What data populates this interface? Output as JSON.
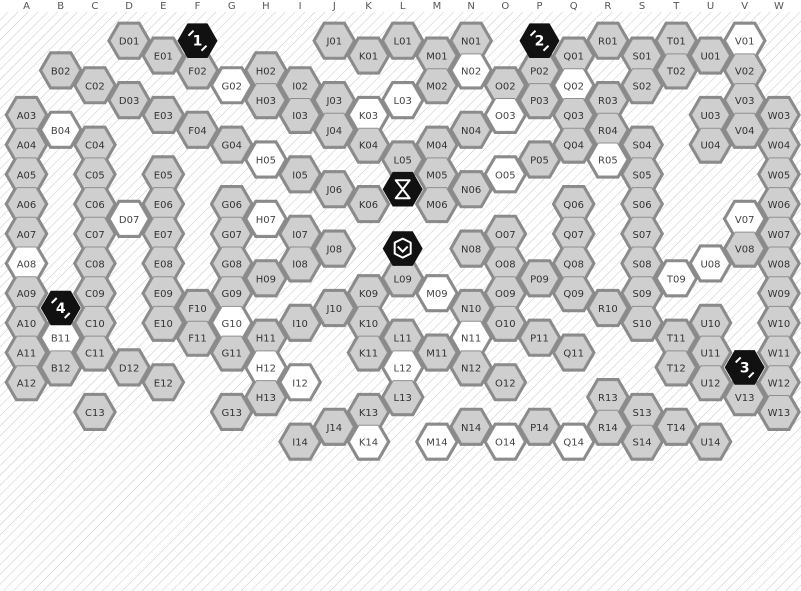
{
  "board": {
    "columns": [
      "A",
      "B",
      "C",
      "D",
      "E",
      "F",
      "G",
      "H",
      "I",
      "J",
      "K",
      "L",
      "M",
      "N",
      "O",
      "P",
      "Q",
      "R",
      "S",
      "T",
      "U",
      "V",
      "W"
    ],
    "white_cells": [
      "V01",
      "G02",
      "N02",
      "O03",
      "K03",
      "L03",
      "Q02",
      "A08",
      "D07",
      "B04",
      "H05",
      "H07",
      "O05",
      "R05",
      "M09",
      "V07",
      "U08",
      "T09",
      "G10",
      "N11",
      "B11",
      "H12",
      "L12",
      "M14",
      "O14",
      "Q14",
      "K14",
      "I12"
    ],
    "colors": {
      "hex_gray": "#cfcfcf",
      "hex_white": "#ffffff",
      "hex_stroke": "#8f8f8f",
      "joint": "#8a8a8a",
      "background_hatch": "#cccccc",
      "badge": "#111111"
    }
  },
  "cells": [
    {
      "id": "E01",
      "label": "E01"
    },
    {
      "id": "D01",
      "label": "D01"
    },
    {
      "id": "C02",
      "label": "C02"
    },
    {
      "id": "B02",
      "label": "B02"
    },
    {
      "id": "A03",
      "label": "A03"
    },
    {
      "id": "A04",
      "label": "A04"
    },
    {
      "id": "A05",
      "label": "A05"
    },
    {
      "id": "A06",
      "label": "A06"
    },
    {
      "id": "A07",
      "label": "A07"
    },
    {
      "id": "A08",
      "label": "A08"
    },
    {
      "id": "A09",
      "label": "A09"
    },
    {
      "id": "A10",
      "label": "A10"
    },
    {
      "id": "A11",
      "label": "A11"
    },
    {
      "id": "A12",
      "label": "A12"
    },
    {
      "id": "B04",
      "label": "B04"
    },
    {
      "id": "B11",
      "label": "B11"
    },
    {
      "id": "B12",
      "label": "B12"
    },
    {
      "id": "C04",
      "label": "C04"
    },
    {
      "id": "C05",
      "label": "C05"
    },
    {
      "id": "C06",
      "label": "C06"
    },
    {
      "id": "C07",
      "label": "C07"
    },
    {
      "id": "C08",
      "label": "C08"
    },
    {
      "id": "C09",
      "label": "C09"
    },
    {
      "id": "C10",
      "label": "C10"
    },
    {
      "id": "C11",
      "label": "C11"
    },
    {
      "id": "C13",
      "label": "C13"
    },
    {
      "id": "D03",
      "label": "D03"
    },
    {
      "id": "D07",
      "label": "D07"
    },
    {
      "id": "D12",
      "label": "D12"
    },
    {
      "id": "E03",
      "label": "E03"
    },
    {
      "id": "E05",
      "label": "E05"
    },
    {
      "id": "E06",
      "label": "E06"
    },
    {
      "id": "E07",
      "label": "E07"
    },
    {
      "id": "E08",
      "label": "E08"
    },
    {
      "id": "E09",
      "label": "E09"
    },
    {
      "id": "E10",
      "label": "E10"
    },
    {
      "id": "E12",
      "label": "E12"
    },
    {
      "id": "F02",
      "label": "F02"
    },
    {
      "id": "F04",
      "label": "F04"
    },
    {
      "id": "F10",
      "label": "F10"
    },
    {
      "id": "F11",
      "label": "F11"
    },
    {
      "id": "G02",
      "label": "G02"
    },
    {
      "id": "G04",
      "label": "G04"
    },
    {
      "id": "G06",
      "label": "G06"
    },
    {
      "id": "G07",
      "label": "G07"
    },
    {
      "id": "G08",
      "label": "G08"
    },
    {
      "id": "G09",
      "label": "G09"
    },
    {
      "id": "G10",
      "label": "G10"
    },
    {
      "id": "G11",
      "label": "G11"
    },
    {
      "id": "G13",
      "label": "G13"
    },
    {
      "id": "H02",
      "label": "H02"
    },
    {
      "id": "H03",
      "label": "H03"
    },
    {
      "id": "H05",
      "label": "H05"
    },
    {
      "id": "H07",
      "label": "H07"
    },
    {
      "id": "H09",
      "label": "H09"
    },
    {
      "id": "H11",
      "label": "H11"
    },
    {
      "id": "H12",
      "label": "H12"
    },
    {
      "id": "H13",
      "label": "H13"
    },
    {
      "id": "I02",
      "label": "I02"
    },
    {
      "id": "I03",
      "label": "I03"
    },
    {
      "id": "I05",
      "label": "I05"
    },
    {
      "id": "I07",
      "label": "I07"
    },
    {
      "id": "I08",
      "label": "I08"
    },
    {
      "id": "I10",
      "label": "I10"
    },
    {
      "id": "I12",
      "label": "I12"
    },
    {
      "id": "I14",
      "label": "I14"
    },
    {
      "id": "J01",
      "label": "J01"
    },
    {
      "id": "J03",
      "label": "J03"
    },
    {
      "id": "J04",
      "label": "J04"
    },
    {
      "id": "J06",
      "label": "J06"
    },
    {
      "id": "J08",
      "label": "J08"
    },
    {
      "id": "J10",
      "label": "J10"
    },
    {
      "id": "J14",
      "label": "J14"
    },
    {
      "id": "K01",
      "label": "K01"
    },
    {
      "id": "K03",
      "label": "K03"
    },
    {
      "id": "K04",
      "label": "K04"
    },
    {
      "id": "K06",
      "label": "K06"
    },
    {
      "id": "K09",
      "label": "K09"
    },
    {
      "id": "K10",
      "label": "K10"
    },
    {
      "id": "K11",
      "label": "K11"
    },
    {
      "id": "K13",
      "label": "K13"
    },
    {
      "id": "K14",
      "label": "K14"
    },
    {
      "id": "L01",
      "label": "L01"
    },
    {
      "id": "L03",
      "label": "L03"
    },
    {
      "id": "L05",
      "label": "L05"
    },
    {
      "id": "L09",
      "label": "L09"
    },
    {
      "id": "L11",
      "label": "L11"
    },
    {
      "id": "L12",
      "label": "L12"
    },
    {
      "id": "L13",
      "label": "L13"
    },
    {
      "id": "M01",
      "label": "M01"
    },
    {
      "id": "M02",
      "label": "M02"
    },
    {
      "id": "M04",
      "label": "M04"
    },
    {
      "id": "M05",
      "label": "M05"
    },
    {
      "id": "M06",
      "label": "M06"
    },
    {
      "id": "M09",
      "label": "M09"
    },
    {
      "id": "M11",
      "label": "M11"
    },
    {
      "id": "M14",
      "label": "M14"
    },
    {
      "id": "N01",
      "label": "N01"
    },
    {
      "id": "N02",
      "label": "N02"
    },
    {
      "id": "N04",
      "label": "N04"
    },
    {
      "id": "N06",
      "label": "N06"
    },
    {
      "id": "N08",
      "label": "N08"
    },
    {
      "id": "N10",
      "label": "N10"
    },
    {
      "id": "N11",
      "label": "N11"
    },
    {
      "id": "N12",
      "label": "N12"
    },
    {
      "id": "N14",
      "label": "N14"
    },
    {
      "id": "O02",
      "label": "O02"
    },
    {
      "id": "O03",
      "label": "O03"
    },
    {
      "id": "O05",
      "label": "O05"
    },
    {
      "id": "O07",
      "label": "O07"
    },
    {
      "id": "O08",
      "label": "O08"
    },
    {
      "id": "O09",
      "label": "O09"
    },
    {
      "id": "O10",
      "label": "O10"
    },
    {
      "id": "O12",
      "label": "O12"
    },
    {
      "id": "O14",
      "label": "O14"
    },
    {
      "id": "P02",
      "label": "P02"
    },
    {
      "id": "P03",
      "label": "P03"
    },
    {
      "id": "P05",
      "label": "P05"
    },
    {
      "id": "P09",
      "label": "P09"
    },
    {
      "id": "P11",
      "label": "P11"
    },
    {
      "id": "P14",
      "label": "P14"
    },
    {
      "id": "Q01",
      "label": "Q01"
    },
    {
      "id": "Q02",
      "label": "Q02"
    },
    {
      "id": "Q03",
      "label": "Q03"
    },
    {
      "id": "Q04",
      "label": "Q04"
    },
    {
      "id": "Q06",
      "label": "Q06"
    },
    {
      "id": "Q07",
      "label": "Q07"
    },
    {
      "id": "Q08",
      "label": "Q08"
    },
    {
      "id": "Q09",
      "label": "Q09"
    },
    {
      "id": "Q11",
      "label": "Q11"
    },
    {
      "id": "Q14",
      "label": "Q14"
    },
    {
      "id": "R01",
      "label": "R01"
    },
    {
      "id": "R03",
      "label": "R03"
    },
    {
      "id": "R04",
      "label": "R04"
    },
    {
      "id": "R05",
      "label": "R05"
    },
    {
      "id": "R10",
      "label": "R10"
    },
    {
      "id": "R13",
      "label": "R13"
    },
    {
      "id": "R14",
      "label": "R14"
    },
    {
      "id": "S01",
      "label": "S01"
    },
    {
      "id": "S02",
      "label": "S02"
    },
    {
      "id": "S04",
      "label": "S04"
    },
    {
      "id": "S05",
      "label": "S05"
    },
    {
      "id": "S06",
      "label": "S06"
    },
    {
      "id": "S07",
      "label": "S07"
    },
    {
      "id": "S08",
      "label": "S08"
    },
    {
      "id": "S09",
      "label": "S09"
    },
    {
      "id": "S10",
      "label": "S10"
    },
    {
      "id": "S13",
      "label": "S13"
    },
    {
      "id": "S14",
      "label": "S14"
    },
    {
      "id": "T01",
      "label": "T01"
    },
    {
      "id": "T02",
      "label": "T02"
    },
    {
      "id": "T09",
      "label": "T09"
    },
    {
      "id": "T11",
      "label": "T11"
    },
    {
      "id": "T12",
      "label": "T12"
    },
    {
      "id": "T14",
      "label": "T14"
    },
    {
      "id": "U01",
      "label": "U01"
    },
    {
      "id": "U03",
      "label": "U03"
    },
    {
      "id": "U04",
      "label": "U04"
    },
    {
      "id": "U08",
      "label": "U08"
    },
    {
      "id": "U10",
      "label": "U10"
    },
    {
      "id": "U11",
      "label": "U11"
    },
    {
      "id": "U12",
      "label": "U12"
    },
    {
      "id": "U14",
      "label": "U14"
    },
    {
      "id": "V01",
      "label": "V01"
    },
    {
      "id": "V02",
      "label": "V02"
    },
    {
      "id": "V03",
      "label": "V03"
    },
    {
      "id": "V04",
      "label": "V04"
    },
    {
      "id": "V07",
      "label": "V07"
    },
    {
      "id": "V08",
      "label": "V08"
    },
    {
      "id": "V13",
      "label": "V13"
    },
    {
      "id": "W03",
      "label": "W03"
    },
    {
      "id": "W04",
      "label": "W04"
    },
    {
      "id": "W05",
      "label": "W05"
    },
    {
      "id": "W06",
      "label": "W06"
    },
    {
      "id": "W07",
      "label": "W07"
    },
    {
      "id": "W08",
      "label": "W08"
    },
    {
      "id": "W09",
      "label": "W09"
    },
    {
      "id": "W10",
      "label": "W10"
    },
    {
      "id": "W11",
      "label": "W11"
    },
    {
      "id": "W12",
      "label": "W12"
    },
    {
      "id": "W13",
      "label": "W13"
    }
  ],
  "badges": [
    {
      "id": "start-1",
      "label": "1",
      "cell": "F01"
    },
    {
      "id": "start-2",
      "label": "2",
      "cell": "P01"
    },
    {
      "id": "start-3",
      "label": "3",
      "cell": "V12"
    },
    {
      "id": "start-4",
      "label": "4",
      "cell": "B10"
    }
  ],
  "specials": [
    {
      "id": "special-top",
      "icon": "hourglass-x-icon",
      "cell": "L06"
    },
    {
      "id": "special-bottom",
      "icon": "shield-chevron-icon",
      "cell": "L08"
    }
  ]
}
